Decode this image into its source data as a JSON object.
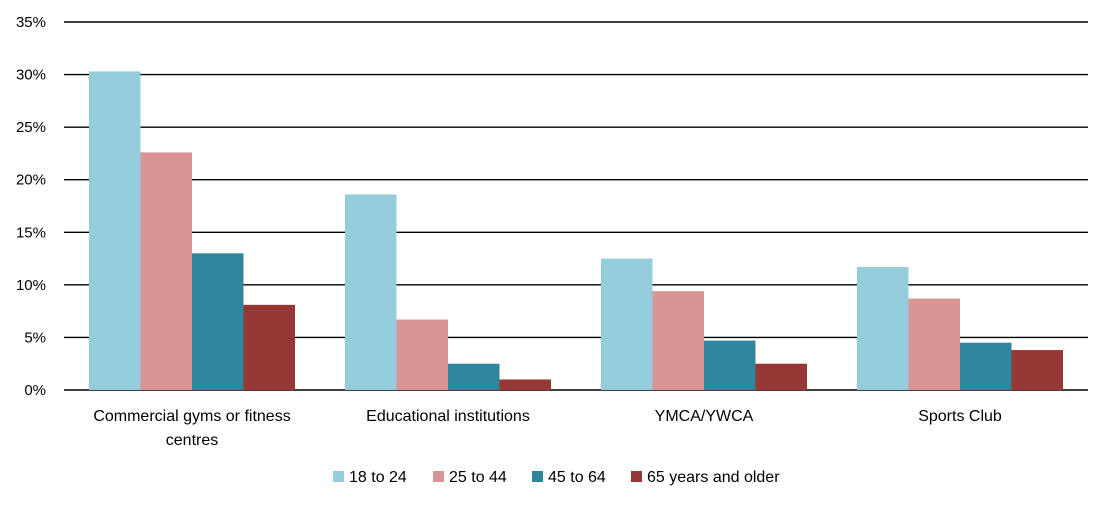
{
  "chart_data": {
    "type": "bar",
    "title": "",
    "xlabel": "",
    "ylabel": "",
    "ylim": [
      0,
      35
    ],
    "y_tick_step": 5,
    "y_tick_format": "percent",
    "grid": true,
    "legend_position": "bottom",
    "categories": [
      [
        "Commercial gyms or fitness",
        "centres"
      ],
      [
        "Educational institutions"
      ],
      [
        "YMCA/YWCA"
      ],
      [
        "Sports Club"
      ]
    ],
    "series": [
      {
        "name": "18 to 24",
        "color": "#95cddd",
        "values": [
          30.3,
          18.6,
          12.5,
          11.7
        ]
      },
      {
        "name": "25 to 44",
        "color": "#d99593",
        "values": [
          22.6,
          6.7,
          9.4,
          8.7
        ]
      },
      {
        "name": "45 to 64",
        "color": "#31859c",
        "values": [
          13.0,
          2.5,
          4.7,
          4.5
        ]
      },
      {
        "name": "65 years and older",
        "color": "#953735",
        "values": [
          8.1,
          1.0,
          2.5,
          3.8
        ]
      }
    ]
  }
}
